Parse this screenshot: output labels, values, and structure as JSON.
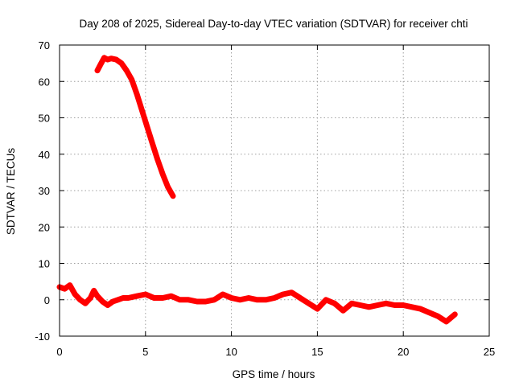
{
  "chart_data": {
    "type": "scatter",
    "title": "Day 208 of 2025, Sidereal Day-to-day VTEC variation (SDTVAR) for receiver chti",
    "xlabel": "GPS time / hours",
    "ylabel": "SDTVAR / TECUs",
    "xlim": [
      0,
      25
    ],
    "ylim": [
      -10,
      70
    ],
    "xticks": [
      0,
      5,
      10,
      15,
      20,
      25
    ],
    "yticks": [
      -10,
      0,
      10,
      20,
      30,
      40,
      50,
      60,
      70
    ],
    "grid": true,
    "series": [
      {
        "name": "SDTVAR",
        "color": "#ff0000",
        "marker": "+",
        "tracks": [
          {
            "x": [
              2.2,
              2.4,
              2.6,
              2.8,
              3.0,
              3.3,
              3.6,
              3.9,
              4.2,
              4.5,
              4.8,
              5.1,
              5.4,
              5.7,
              6.0,
              6.3,
              6.6
            ],
            "y": [
              63.0,
              64.8,
              66.5,
              66.0,
              66.3,
              66.0,
              65.0,
              63.0,
              60.5,
              56.5,
              52.0,
              47.5,
              43.0,
              38.5,
              34.5,
              31.0,
              28.5
            ]
          },
          {
            "x": [
              0.0,
              0.3,
              0.6,
              0.9,
              1.2,
              1.5,
              1.8,
              2.0,
              2.2,
              2.5,
              2.8,
              3.1,
              3.4,
              3.7,
              4.0,
              4.5,
              5.0,
              5.5,
              6.0,
              6.5,
              7.0,
              7.5,
              8.0,
              8.5,
              9.0,
              9.5,
              10.0,
              10.5,
              11.0,
              11.5,
              12.0,
              12.5,
              13.0,
              13.5,
              14.0,
              14.5,
              15.0,
              15.5,
              16.0,
              16.5,
              17.0,
              17.5,
              18.0,
              18.5,
              19.0,
              19.5,
              20.0,
              20.5,
              21.0,
              21.5,
              22.0,
              22.5,
              23.0
            ],
            "y": [
              3.5,
              3.0,
              4.0,
              1.5,
              0.0,
              -1.0,
              0.5,
              2.5,
              1.0,
              -0.5,
              -1.5,
              -0.5,
              0.0,
              0.5,
              0.5,
              1.0,
              1.5,
              0.5,
              0.5,
              1.0,
              0.0,
              0.0,
              -0.5,
              -0.5,
              0.0,
              1.5,
              0.5,
              0.0,
              0.5,
              0.0,
              0.0,
              0.5,
              1.5,
              2.0,
              0.5,
              -1.0,
              -2.5,
              0.0,
              -1.0,
              -3.0,
              -1.0,
              -1.5,
              -2.0,
              -1.5,
              -1.0,
              -1.5,
              -1.5,
              -2.0,
              -2.5,
              -3.5,
              -4.5,
              -6.0,
              -4.0
            ]
          }
        ]
      }
    ]
  }
}
